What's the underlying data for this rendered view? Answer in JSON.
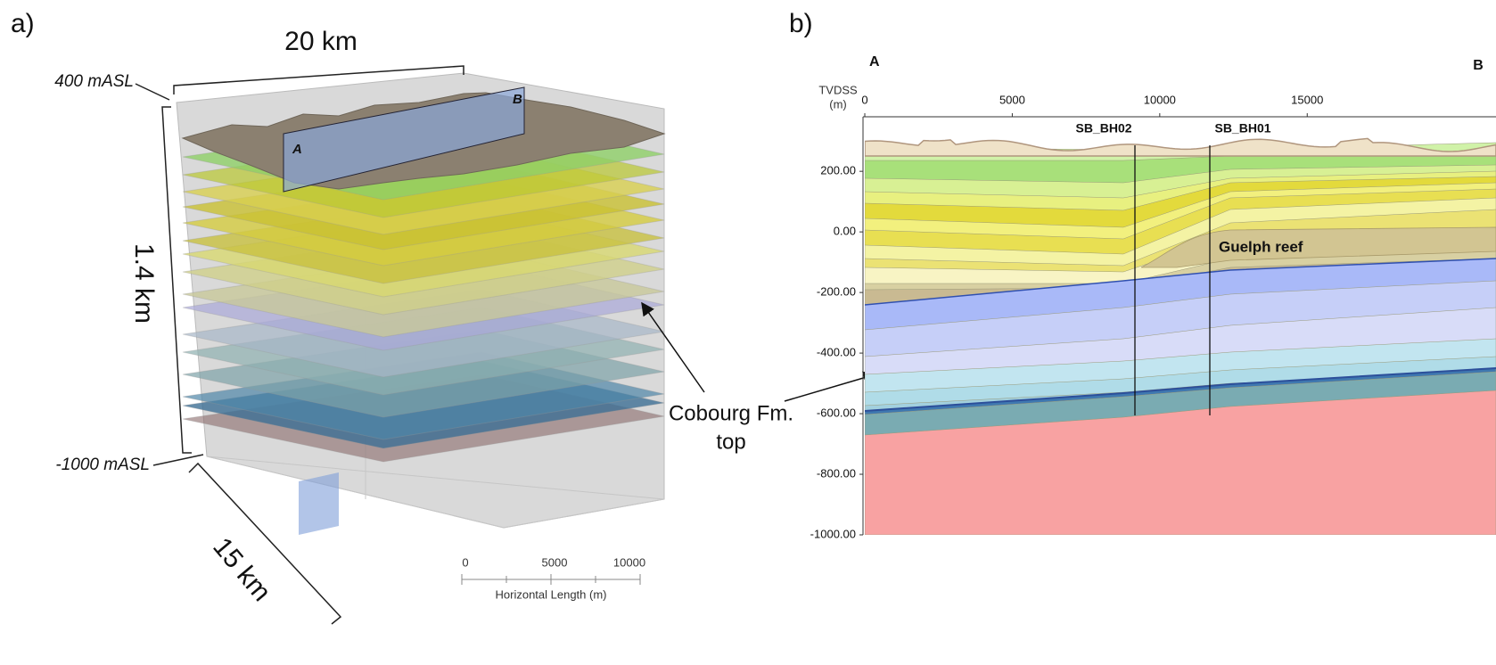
{
  "panel_a": {
    "label": "a)",
    "width_label": "20 km",
    "top_elevation": "400 mASL",
    "height_label": "1.4 km",
    "bottom_elevation": "-1000 mASL",
    "depth_label": "15 km",
    "section_start": "A",
    "section_end": "B",
    "scale_bar": {
      "ticks": [
        "0",
        "5000",
        "10000"
      ],
      "title": "Horizontal Length (m)"
    }
  },
  "annotation": {
    "lines": [
      "Cobourg Fm.",
      "top"
    ]
  },
  "panel_b": {
    "label": "b)",
    "section_start": "A",
    "section_end": "B",
    "y_axis_title": [
      "TVDSS",
      "(m)"
    ],
    "xlim": [
      0,
      21400
    ],
    "xticks": [
      0,
      5000,
      10000,
      15000
    ],
    "ylim": [
      -1000,
      380
    ],
    "yticks": [
      {
        "value": 200,
        "label": "200.00"
      },
      {
        "value": 0,
        "label": "0.00"
      },
      {
        "value": -200,
        "label": "-200.00"
      },
      {
        "value": -400,
        "label": "-400.00"
      },
      {
        "value": -600,
        "label": "-600.00"
      },
      {
        "value": -800,
        "label": "-800.00"
      },
      {
        "value": -1000,
        "label": "-1000.00"
      }
    ],
    "wells": [
      "SB_BH02",
      "SB_BH01"
    ],
    "reef_label": "Guelph reef"
  }
}
